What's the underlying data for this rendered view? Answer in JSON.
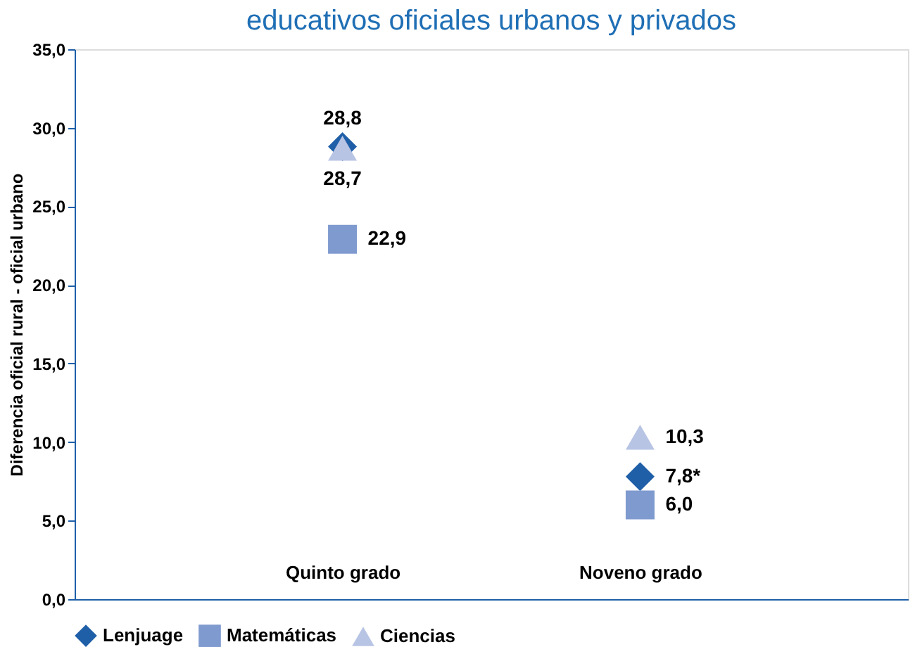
{
  "chart_data": {
    "type": "scatter",
    "title": "educativos oficiales urbanos y privados",
    "ylabel": "Diferencia oficial rural - oficial urbano",
    "categories": [
      "Quinto grado",
      "Noveno grado"
    ],
    "series": [
      {
        "name": "Lenjuage",
        "color": "#1f5fa8",
        "marker": "diamond",
        "values": [
          28.8,
          7.8
        ],
        "value_labels": [
          "28,8",
          "7,8*"
        ]
      },
      {
        "name": "Matemáticas",
        "color": "#7f9acf",
        "marker": "square",
        "values": [
          22.9,
          6.0
        ],
        "value_labels": [
          "22,9",
          "6,0"
        ]
      },
      {
        "name": "Ciencias",
        "color": "#b8c4e4",
        "marker": "triangle",
        "values": [
          28.7,
          10.3
        ],
        "value_labels": [
          "28,7",
          "10,3"
        ]
      }
    ],
    "ylim": [
      0,
      35
    ],
    "yticks": [
      {
        "value": 0,
        "label": "0,0"
      },
      {
        "value": 5,
        "label": "5,0"
      },
      {
        "value": 10,
        "label": "10,0"
      },
      {
        "value": 15,
        "label": "15,0"
      },
      {
        "value": 20,
        "label": "20,0"
      },
      {
        "value": 25,
        "label": "25,0"
      },
      {
        "value": 30,
        "label": "30,0"
      },
      {
        "value": 35,
        "label": "35,0"
      }
    ],
    "grid": false,
    "legend": "bottom"
  }
}
